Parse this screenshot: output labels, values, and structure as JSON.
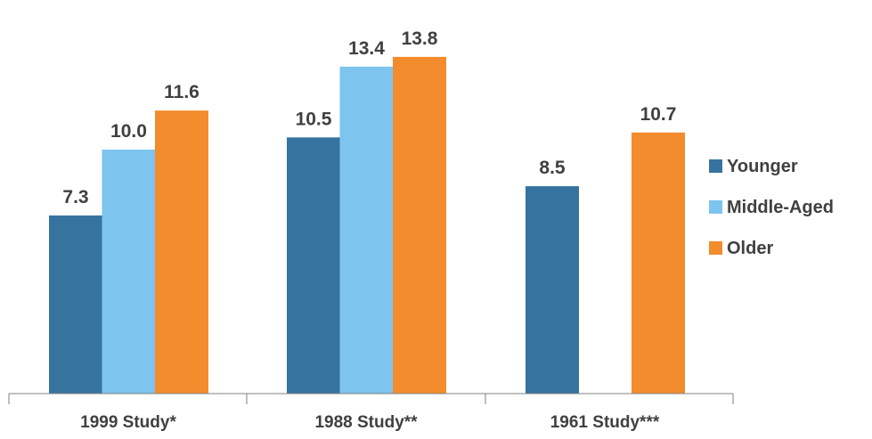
{
  "colors": {
    "younger": "#36739F",
    "middle_aged": "#7DC4EF",
    "older": "#F28C2C",
    "axis": "#808080",
    "text": "#404040"
  },
  "chart_data": {
    "type": "bar",
    "categories": [
      "1999 Study*",
      "1988 Study**",
      "1961 Study***"
    ],
    "series": [
      {
        "name": "Younger",
        "values": [
          7.3,
          10.5,
          8.5
        ],
        "labels": [
          "7.3",
          "10.5",
          "8.5"
        ]
      },
      {
        "name": "Middle-Aged",
        "values": [
          10.0,
          13.4,
          null
        ],
        "labels": [
          "10.0",
          "13.4",
          ""
        ]
      },
      {
        "name": "Older",
        "values": [
          11.6,
          13.8,
          10.7
        ],
        "labels": [
          "11.6",
          "13.8",
          "10.7"
        ]
      }
    ],
    "ylim": [
      0,
      14.5
    ],
    "grid": false,
    "legend_position": "right"
  }
}
